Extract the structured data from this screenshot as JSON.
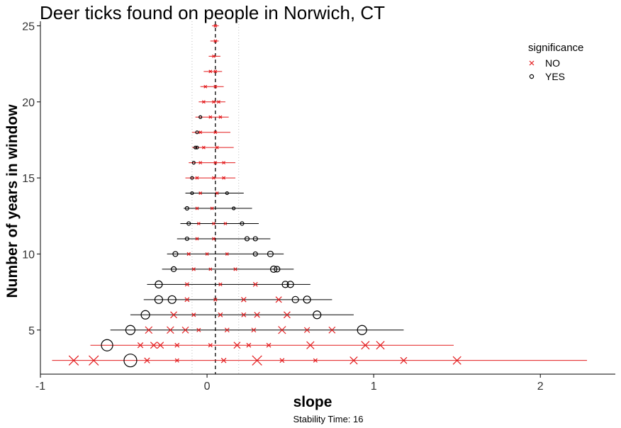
{
  "chart_data": {
    "type": "scatter",
    "title": "Deer ticks found on people in Norwich, CT",
    "xlabel": "slope",
    "ylabel": "Number of years in window",
    "caption": "Stability Time: 16",
    "xlim": [
      -1.0,
      2.45
    ],
    "ylim": [
      2.1,
      25.3
    ],
    "x_ticks": [
      -1,
      0,
      1,
      2
    ],
    "y_ticks": [
      5,
      10,
      15,
      20,
      25
    ],
    "reference_lines": {
      "dashed": 0.05,
      "dotted": [
        -0.09,
        0.19
      ]
    },
    "grid": false,
    "legend": {
      "title": "significance",
      "position": "top-right",
      "entries": [
        {
          "label": "NO",
          "marker": "x",
          "color": "#e31a1c"
        },
        {
          "label": "YES",
          "marker": "circle",
          "color": "#000000"
        }
      ]
    },
    "ranges": [
      {
        "y": 3,
        "min": -0.93,
        "max": 2.28,
        "color": "#e31a1c"
      },
      {
        "y": 4,
        "min": -0.7,
        "max": 1.48,
        "color": "#e31a1c"
      },
      {
        "y": 5,
        "min": -0.58,
        "max": 1.18,
        "color": "#000000"
      },
      {
        "y": 6,
        "min": -0.46,
        "max": 0.88,
        "color": "#000000"
      },
      {
        "y": 7,
        "min": -0.38,
        "max": 0.75,
        "color": "#000000"
      },
      {
        "y": 8,
        "min": -0.36,
        "max": 0.62,
        "color": "#000000"
      },
      {
        "y": 9,
        "min": -0.27,
        "max": 0.52,
        "color": "#000000"
      },
      {
        "y": 10,
        "min": -0.24,
        "max": 0.46,
        "color": "#000000"
      },
      {
        "y": 11,
        "min": -0.18,
        "max": 0.38,
        "color": "#000000"
      },
      {
        "y": 12,
        "min": -0.16,
        "max": 0.31,
        "color": "#000000"
      },
      {
        "y": 13,
        "min": -0.14,
        "max": 0.27,
        "color": "#000000"
      },
      {
        "y": 14,
        "min": -0.13,
        "max": 0.22,
        "color": "#000000"
      },
      {
        "y": 15,
        "min": -0.13,
        "max": 0.17,
        "color": "#e31a1c"
      },
      {
        "y": 16,
        "min": -0.11,
        "max": 0.17,
        "color": "#e31a1c"
      },
      {
        "y": 17,
        "min": -0.09,
        "max": 0.16,
        "color": "#e31a1c"
      },
      {
        "y": 18,
        "min": -0.09,
        "max": 0.14,
        "color": "#e31a1c"
      },
      {
        "y": 19,
        "min": -0.07,
        "max": 0.13,
        "color": "#e31a1c"
      },
      {
        "y": 20,
        "min": -0.05,
        "max": 0.11,
        "color": "#e31a1c"
      },
      {
        "y": 21,
        "min": -0.04,
        "max": 0.1,
        "color": "#e31a1c"
      },
      {
        "y": 22,
        "min": -0.02,
        "max": 0.09,
        "color": "#e31a1c"
      },
      {
        "y": 23,
        "min": 0.01,
        "max": 0.08,
        "color": "#e31a1c"
      },
      {
        "y": 24,
        "min": 0.02,
        "max": 0.07,
        "color": "#e31a1c"
      },
      {
        "y": 25,
        "min": 0.03,
        "max": 0.07,
        "color": "#e31a1c"
      }
    ],
    "points": [
      {
        "y": 3,
        "x": -0.8,
        "sig": "NO",
        "size": 18
      },
      {
        "y": 3,
        "x": -0.68,
        "sig": "NO",
        "size": 18
      },
      {
        "y": 3,
        "x": -0.46,
        "sig": "YES",
        "size": 18
      },
      {
        "y": 3,
        "x": -0.36,
        "sig": "NO",
        "size": 10
      },
      {
        "y": 3,
        "x": -0.18,
        "sig": "NO",
        "size": 7
      },
      {
        "y": 3,
        "x": 0.1,
        "sig": "NO",
        "size": 9
      },
      {
        "y": 3,
        "x": 0.3,
        "sig": "NO",
        "size": 18
      },
      {
        "y": 3,
        "x": 0.45,
        "sig": "NO",
        "size": 8
      },
      {
        "y": 3,
        "x": 0.65,
        "sig": "NO",
        "size": 7
      },
      {
        "y": 3,
        "x": 0.88,
        "sig": "NO",
        "size": 14
      },
      {
        "y": 3,
        "x": 1.18,
        "sig": "NO",
        "size": 12
      },
      {
        "y": 3,
        "x": 1.5,
        "sig": "NO",
        "size": 15
      },
      {
        "y": 4,
        "x": -0.6,
        "sig": "YES",
        "size": 16
      },
      {
        "y": 4,
        "x": -0.4,
        "sig": "NO",
        "size": 10
      },
      {
        "y": 4,
        "x": -0.32,
        "sig": "NO",
        "size": 12
      },
      {
        "y": 4,
        "x": -0.28,
        "sig": "NO",
        "size": 12
      },
      {
        "y": 4,
        "x": -0.18,
        "sig": "NO",
        "size": 8
      },
      {
        "y": 4,
        "x": 0.02,
        "sig": "NO",
        "size": 7
      },
      {
        "y": 4,
        "x": 0.18,
        "sig": "NO",
        "size": 12
      },
      {
        "y": 4,
        "x": 0.25,
        "sig": "NO",
        "size": 8
      },
      {
        "y": 4,
        "x": 0.37,
        "sig": "NO",
        "size": 8
      },
      {
        "y": 4,
        "x": 0.62,
        "sig": "NO",
        "size": 14
      },
      {
        "y": 4,
        "x": 0.95,
        "sig": "NO",
        "size": 15
      },
      {
        "y": 4,
        "x": 1.04,
        "sig": "NO",
        "size": 15
      },
      {
        "y": 5,
        "x": -0.46,
        "sig": "YES",
        "size": 13
      },
      {
        "y": 5,
        "x": -0.35,
        "sig": "NO",
        "size": 13
      },
      {
        "y": 5,
        "x": -0.22,
        "sig": "NO",
        "size": 13
      },
      {
        "y": 5,
        "x": -0.13,
        "sig": "NO",
        "size": 12
      },
      {
        "y": 5,
        "x": -0.05,
        "sig": "NO",
        "size": 7
      },
      {
        "y": 5,
        "x": 0.12,
        "sig": "NO",
        "size": 8
      },
      {
        "y": 5,
        "x": 0.28,
        "sig": "NO",
        "size": 8
      },
      {
        "y": 5,
        "x": 0.45,
        "sig": "NO",
        "size": 14
      },
      {
        "y": 5,
        "x": 0.6,
        "sig": "NO",
        "size": 10
      },
      {
        "y": 5,
        "x": 0.75,
        "sig": "NO",
        "size": 12
      },
      {
        "y": 5,
        "x": 0.93,
        "sig": "YES",
        "size": 13
      },
      {
        "y": 6,
        "x": -0.37,
        "sig": "YES",
        "size": 12
      },
      {
        "y": 6,
        "x": -0.2,
        "sig": "NO",
        "size": 12
      },
      {
        "y": 6,
        "x": -0.08,
        "sig": "NO",
        "size": 7
      },
      {
        "y": 6,
        "x": 0.08,
        "sig": "NO",
        "size": 8
      },
      {
        "y": 6,
        "x": 0.22,
        "sig": "NO",
        "size": 8
      },
      {
        "y": 6,
        "x": 0.3,
        "sig": "NO",
        "size": 10
      },
      {
        "y": 6,
        "x": 0.48,
        "sig": "NO",
        "size": 12
      },
      {
        "y": 6,
        "x": 0.66,
        "sig": "YES",
        "size": 11
      },
      {
        "y": 7,
        "x": -0.29,
        "sig": "YES",
        "size": 11
      },
      {
        "y": 7,
        "x": -0.21,
        "sig": "YES",
        "size": 11
      },
      {
        "y": 7,
        "x": -0.12,
        "sig": "NO",
        "size": 8
      },
      {
        "y": 7,
        "x": 0.05,
        "sig": "NO",
        "size": 6
      },
      {
        "y": 7,
        "x": 0.22,
        "sig": "NO",
        "size": 9
      },
      {
        "y": 7,
        "x": 0.43,
        "sig": "NO",
        "size": 11
      },
      {
        "y": 7,
        "x": 0.53,
        "sig": "YES",
        "size": 9
      },
      {
        "y": 7,
        "x": 0.6,
        "sig": "YES",
        "size": 10
      },
      {
        "y": 8,
        "x": -0.29,
        "sig": "YES",
        "size": 10
      },
      {
        "y": 8,
        "x": -0.12,
        "sig": "NO",
        "size": 7
      },
      {
        "y": 8,
        "x": 0.08,
        "sig": "NO",
        "size": 6
      },
      {
        "y": 8,
        "x": 0.29,
        "sig": "NO",
        "size": 8
      },
      {
        "y": 8,
        "x": 0.47,
        "sig": "YES",
        "size": 9
      },
      {
        "y": 8,
        "x": 0.5,
        "sig": "YES",
        "size": 9
      },
      {
        "y": 9,
        "x": -0.2,
        "sig": "YES",
        "size": 7
      },
      {
        "y": 9,
        "x": -0.08,
        "sig": "NO",
        "size": 6
      },
      {
        "y": 9,
        "x": 0.02,
        "sig": "NO",
        "size": 5
      },
      {
        "y": 9,
        "x": 0.17,
        "sig": "NO",
        "size": 6
      },
      {
        "y": 9,
        "x": 0.4,
        "sig": "YES",
        "size": 9
      },
      {
        "y": 9,
        "x": 0.42,
        "sig": "YES",
        "size": 8
      },
      {
        "y": 10,
        "x": -0.19,
        "sig": "YES",
        "size": 7
      },
      {
        "y": 10,
        "x": -0.11,
        "sig": "NO",
        "size": 6
      },
      {
        "y": 10,
        "x": 0.0,
        "sig": "NO",
        "size": 5
      },
      {
        "y": 10,
        "x": 0.12,
        "sig": "NO",
        "size": 5
      },
      {
        "y": 10,
        "x": 0.29,
        "sig": "YES",
        "size": 6
      },
      {
        "y": 10,
        "x": 0.38,
        "sig": "YES",
        "size": 8
      },
      {
        "y": 11,
        "x": -0.12,
        "sig": "YES",
        "size": 5
      },
      {
        "y": 11,
        "x": -0.06,
        "sig": "NO",
        "size": 5
      },
      {
        "y": 11,
        "x": 0.04,
        "sig": "NO",
        "size": 4
      },
      {
        "y": 11,
        "x": 0.24,
        "sig": "YES",
        "size": 6
      },
      {
        "y": 11,
        "x": 0.29,
        "sig": "YES",
        "size": 6
      },
      {
        "y": 12,
        "x": -0.11,
        "sig": "YES",
        "size": 5
      },
      {
        "y": 12,
        "x": -0.05,
        "sig": "NO",
        "size": 5
      },
      {
        "y": 12,
        "x": 0.04,
        "sig": "NO",
        "size": 4
      },
      {
        "y": 12,
        "x": 0.11,
        "sig": "NO",
        "size": 4
      },
      {
        "y": 12,
        "x": 0.21,
        "sig": "YES",
        "size": 5
      },
      {
        "y": 13,
        "x": -0.12,
        "sig": "YES",
        "size": 5
      },
      {
        "y": 13,
        "x": -0.06,
        "sig": "NO",
        "size": 5
      },
      {
        "y": 13,
        "x": 0.03,
        "sig": "NO",
        "size": 4
      },
      {
        "y": 13,
        "x": 0.16,
        "sig": "YES",
        "size": 4
      },
      {
        "y": 14,
        "x": -0.09,
        "sig": "YES",
        "size": 4
      },
      {
        "y": 14,
        "x": -0.04,
        "sig": "NO",
        "size": 4
      },
      {
        "y": 14,
        "x": 0.06,
        "sig": "NO",
        "size": 3
      },
      {
        "y": 14,
        "x": 0.12,
        "sig": "YES",
        "size": 3
      },
      {
        "y": 15,
        "x": -0.09,
        "sig": "YES",
        "size": 4
      },
      {
        "y": 15,
        "x": -0.06,
        "sig": "NO",
        "size": 4
      },
      {
        "y": 15,
        "x": 0.04,
        "sig": "NO",
        "size": 3
      },
      {
        "y": 15,
        "x": 0.1,
        "sig": "NO",
        "size": 4
      },
      {
        "y": 16,
        "x": -0.08,
        "sig": "YES",
        "size": 4
      },
      {
        "y": 16,
        "x": -0.04,
        "sig": "NO",
        "size": 4
      },
      {
        "y": 16,
        "x": 0.05,
        "sig": "NO",
        "size": 3
      },
      {
        "y": 16,
        "x": 0.1,
        "sig": "NO",
        "size": 3
      },
      {
        "y": 17,
        "x": -0.07,
        "sig": "YES",
        "size": 4
      },
      {
        "y": 17,
        "x": -0.06,
        "sig": "YES",
        "size": 4
      },
      {
        "y": 17,
        "x": -0.02,
        "sig": "NO",
        "size": 3
      },
      {
        "y": 17,
        "x": 0.06,
        "sig": "NO",
        "size": 3
      },
      {
        "y": 18,
        "x": -0.06,
        "sig": "YES",
        "size": 3
      },
      {
        "y": 18,
        "x": -0.04,
        "sig": "NO",
        "size": 3
      },
      {
        "y": 18,
        "x": 0.05,
        "sig": "NO",
        "size": 3
      },
      {
        "y": 19,
        "x": -0.04,
        "sig": "YES",
        "size": 3
      },
      {
        "y": 19,
        "x": 0.02,
        "sig": "NO",
        "size": 3
      },
      {
        "y": 19,
        "x": 0.08,
        "sig": "NO",
        "size": 3
      },
      {
        "y": 20,
        "x": -0.02,
        "sig": "NO",
        "size": 3
      },
      {
        "y": 20,
        "x": 0.04,
        "sig": "NO",
        "size": 3
      },
      {
        "y": 20,
        "x": 0.07,
        "sig": "NO",
        "size": 3
      },
      {
        "y": 21,
        "x": -0.01,
        "sig": "NO",
        "size": 3
      },
      {
        "y": 21,
        "x": 0.05,
        "sig": "NO",
        "size": 3
      },
      {
        "y": 22,
        "x": 0.02,
        "sig": "NO",
        "size": 3
      },
      {
        "y": 22,
        "x": 0.05,
        "sig": "NO",
        "size": 3
      },
      {
        "y": 23,
        "x": 0.04,
        "sig": "NO",
        "size": 3
      },
      {
        "y": 24,
        "x": 0.05,
        "sig": "NO",
        "size": 3
      },
      {
        "y": 25,
        "x": 0.05,
        "sig": "NO",
        "size": 3
      }
    ]
  }
}
